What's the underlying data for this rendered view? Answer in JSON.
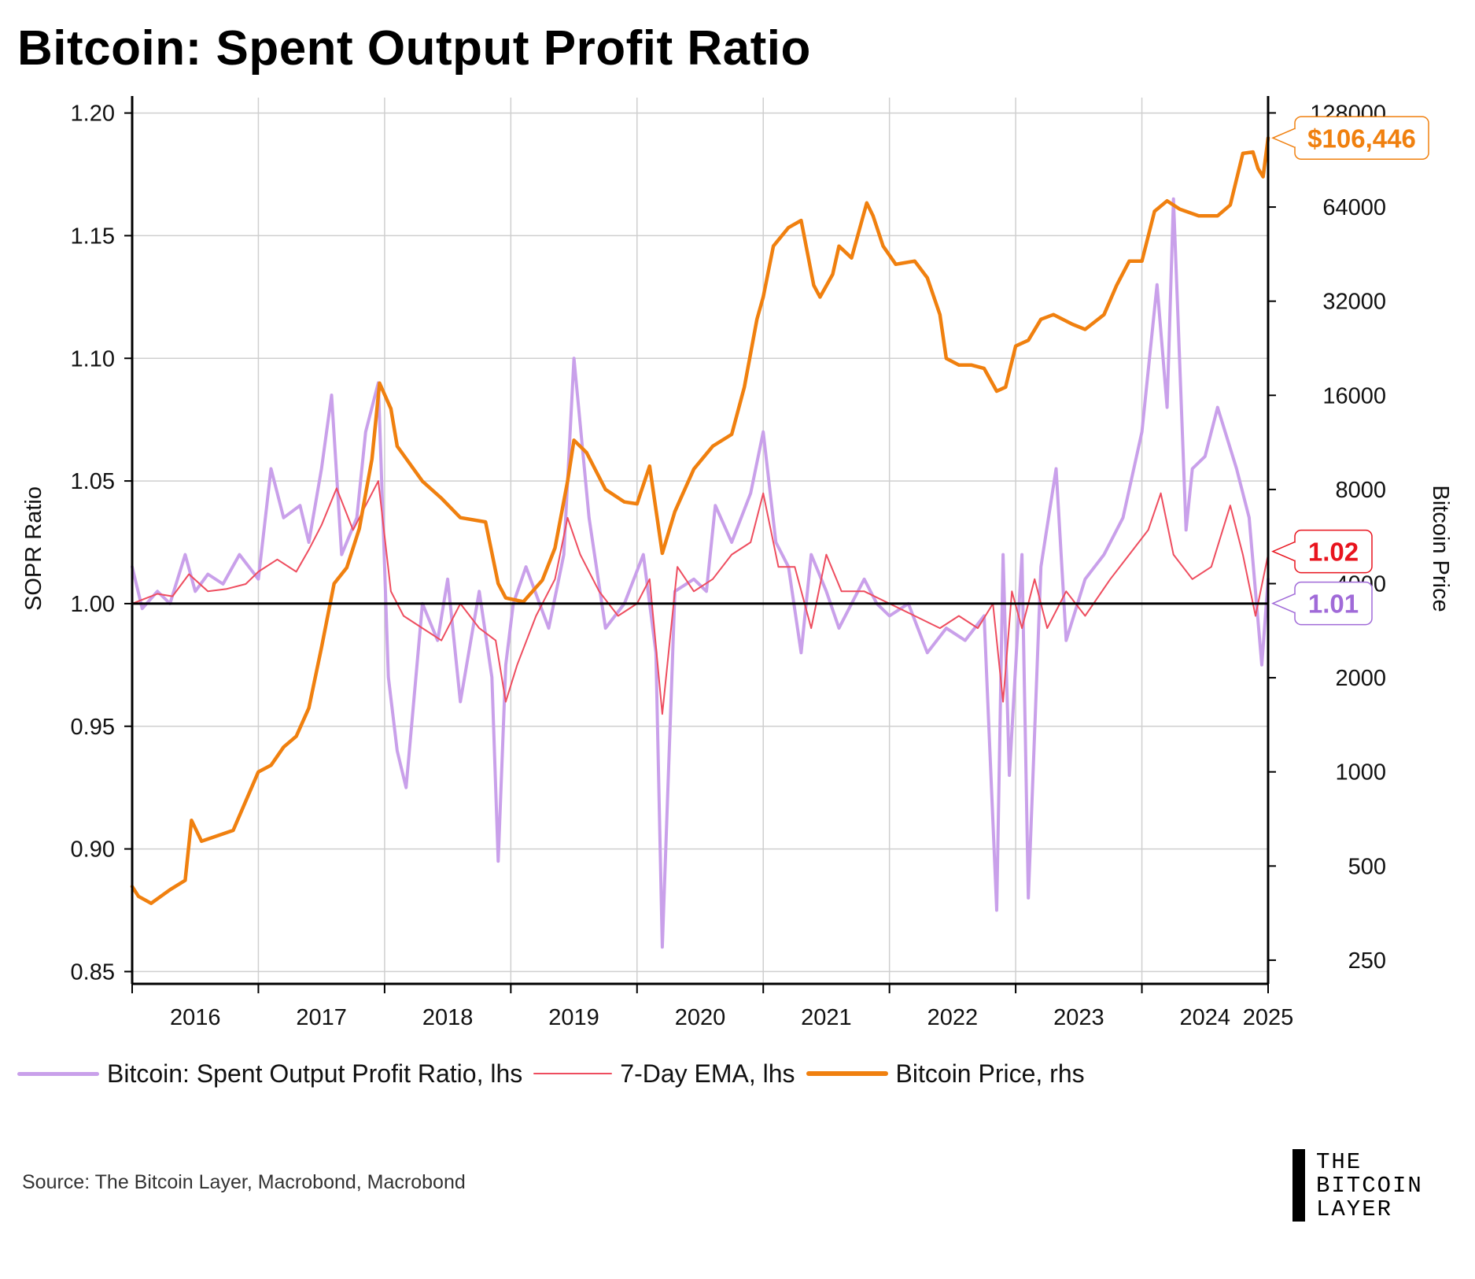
{
  "title": "Bitcoin: Spent Output Profit Ratio",
  "source": "Source: The Bitcoin Layer, Macrobond, Macrobond",
  "logo": [
    "THE",
    "BITCOIN",
    "LAYER"
  ],
  "colors": {
    "sopr": "#c9a0ea",
    "ema": "#ee4d5f",
    "price": "#f0800f",
    "grid": "#cfcfcf",
    "axis": "#000000"
  },
  "chart_data": {
    "type": "line",
    "title": "Bitcoin: Spent Output Profit Ratio",
    "ylabel_left": "SOPR Ratio",
    "ylabel_right": "Bitcoin Price",
    "right_axis_scale": "log2",
    "ylim_left": [
      0.845,
      1.205
    ],
    "ylim_right": [
      210,
      140000
    ],
    "xlim": [
      2016.0,
      2025.0
    ],
    "left_ticks": [
      "0.85",
      "0.90",
      "0.95",
      "1.00",
      "1.05",
      "1.10",
      "1.15",
      "1.20"
    ],
    "right_ticks": [
      "250",
      "500",
      "1000",
      "2000",
      "4000",
      "8000",
      "16000",
      "32000",
      "64000",
      "128000"
    ],
    "x_ticks": [
      "2016",
      "2017",
      "2018",
      "2019",
      "2020",
      "2021",
      "2022",
      "2023",
      "2024",
      "2025"
    ],
    "grid": true,
    "legend_position": "bottom",
    "reference_line": 1.0,
    "callouts": [
      {
        "text": "$106,446",
        "series": "Bitcoin Price, rhs",
        "value": 106446,
        "color": "#f0800f"
      },
      {
        "text": "1.02",
        "series": "7-Day EMA, lhs",
        "value": 1.02,
        "color": "#e8141e"
      },
      {
        "text": "1.01",
        "series": "Bitcoin: Spent Output Profit Ratio, lhs",
        "value": 1.01,
        "color": "#a06ad8"
      }
    ],
    "series": [
      {
        "name": "Bitcoin: Spent Output Profit Ratio, lhs",
        "axis": "left",
        "x": [
          2016.0,
          2016.08,
          2016.2,
          2016.3,
          2016.42,
          2016.5,
          2016.6,
          2016.72,
          2016.85,
          2017.0,
          2017.1,
          2017.2,
          2017.33,
          2017.4,
          2017.5,
          2017.58,
          2017.66,
          2017.78,
          2017.85,
          2017.95,
          2018.03,
          2018.1,
          2018.17,
          2018.3,
          2018.42,
          2018.5,
          2018.6,
          2018.75,
          2018.85,
          2018.9,
          2018.96,
          2019.02,
          2019.12,
          2019.3,
          2019.42,
          2019.5,
          2019.62,
          2019.75,
          2019.9,
          2020.05,
          2020.15,
          2020.2,
          2020.3,
          2020.45,
          2020.55,
          2020.62,
          2020.75,
          2020.9,
          2021.0,
          2021.1,
          2021.2,
          2021.3,
          2021.38,
          2021.5,
          2021.6,
          2021.8,
          2021.9,
          2022.0,
          2022.15,
          2022.3,
          2022.45,
          2022.6,
          2022.75,
          2022.85,
          2022.9,
          2022.95,
          2023.05,
          2023.1,
          2023.2,
          2023.32,
          2023.4,
          2023.55,
          2023.7,
          2023.85,
          2024.0,
          2024.12,
          2024.2,
          2024.25,
          2024.35,
          2024.4,
          2024.5,
          2024.6,
          2024.75,
          2024.85,
          2024.95,
          2025.0
        ],
        "values": [
          1.015,
          0.998,
          1.005,
          1.0,
          1.02,
          1.005,
          1.012,
          1.008,
          1.02,
          1.01,
          1.055,
          1.035,
          1.04,
          1.025,
          1.055,
          1.085,
          1.02,
          1.035,
          1.07,
          1.09,
          0.97,
          0.94,
          0.925,
          1.0,
          0.985,
          1.01,
          0.96,
          1.005,
          0.97,
          0.895,
          0.975,
          1.0,
          1.015,
          0.99,
          1.02,
          1.1,
          1.035,
          0.99,
          1.0,
          1.02,
          0.98,
          0.86,
          1.005,
          1.01,
          1.005,
          1.04,
          1.025,
          1.045,
          1.07,
          1.025,
          1.015,
          0.98,
          1.02,
          1.005,
          0.99,
          1.01,
          1.0,
          0.995,
          1.0,
          0.98,
          0.99,
          0.985,
          0.995,
          0.875,
          1.02,
          0.93,
          1.02,
          0.88,
          1.015,
          1.055,
          0.985,
          1.01,
          1.02,
          1.035,
          1.07,
          1.13,
          1.08,
          1.165,
          1.03,
          1.055,
          1.06,
          1.08,
          1.055,
          1.035,
          0.975,
          1.01
        ]
      },
      {
        "name": "7-Day EMA, lhs",
        "axis": "left",
        "x": [
          2016.0,
          2016.1,
          2016.2,
          2016.32,
          2016.45,
          2016.6,
          2016.75,
          2016.9,
          2017.0,
          2017.15,
          2017.3,
          2017.4,
          2017.5,
          2017.62,
          2017.75,
          2017.85,
          2017.95,
          2018.05,
          2018.15,
          2018.3,
          2018.45,
          2018.6,
          2018.75,
          2018.88,
          2018.96,
          2019.05,
          2019.2,
          2019.35,
          2019.45,
          2019.55,
          2019.7,
          2019.85,
          2020.0,
          2020.1,
          2020.2,
          2020.32,
          2020.45,
          2020.6,
          2020.75,
          2020.9,
          2021.0,
          2021.12,
          2021.25,
          2021.38,
          2021.5,
          2021.62,
          2021.8,
          2022.0,
          2022.2,
          2022.4,
          2022.55,
          2022.7,
          2022.82,
          2022.9,
          2022.97,
          2023.05,
          2023.15,
          2023.25,
          2023.4,
          2023.55,
          2023.75,
          2023.9,
          2024.05,
          2024.15,
          2024.25,
          2024.4,
          2024.55,
          2024.7,
          2024.8,
          2024.9,
          2025.0
        ],
        "values": [
          1.0,
          1.002,
          1.004,
          1.003,
          1.012,
          1.005,
          1.006,
          1.008,
          1.013,
          1.018,
          1.013,
          1.022,
          1.032,
          1.047,
          1.03,
          1.04,
          1.05,
          1.005,
          0.995,
          0.99,
          0.985,
          1.0,
          0.99,
          0.985,
          0.96,
          0.975,
          0.995,
          1.01,
          1.035,
          1.02,
          1.005,
          0.995,
          1.0,
          1.01,
          0.955,
          1.015,
          1.005,
          1.01,
          1.02,
          1.025,
          1.045,
          1.015,
          1.015,
          0.99,
          1.02,
          1.005,
          1.005,
          1.0,
          0.995,
          0.99,
          0.995,
          0.99,
          1.0,
          0.96,
          1.005,
          0.99,
          1.01,
          0.99,
          1.005,
          0.995,
          1.01,
          1.02,
          1.03,
          1.045,
          1.02,
          1.01,
          1.015,
          1.04,
          1.02,
          0.995,
          1.02
        ]
      },
      {
        "name": "Bitcoin Price, rhs",
        "axis": "right",
        "x": [
          2016.0,
          2016.05,
          2016.15,
          2016.3,
          2016.42,
          2016.47,
          2016.55,
          2016.65,
          2016.8,
          2017.0,
          2017.1,
          2017.2,
          2017.3,
          2017.4,
          2017.5,
          2017.6,
          2017.7,
          2017.8,
          2017.9,
          2017.96,
          2018.05,
          2018.1,
          2018.3,
          2018.45,
          2018.6,
          2018.8,
          2018.9,
          2018.96,
          2019.1,
          2019.25,
          2019.35,
          2019.45,
          2019.5,
          2019.6,
          2019.75,
          2019.9,
          2020.0,
          2020.1,
          2020.2,
          2020.3,
          2020.45,
          2020.6,
          2020.75,
          2020.85,
          2020.95,
          2021.0,
          2021.08,
          2021.2,
          2021.3,
          2021.4,
          2021.45,
          2021.55,
          2021.6,
          2021.7,
          2021.82,
          2021.87,
          2021.95,
          2022.05,
          2022.2,
          2022.3,
          2022.4,
          2022.45,
          2022.55,
          2022.65,
          2022.75,
          2022.85,
          2022.92,
          2023.0,
          2023.1,
          2023.2,
          2023.3,
          2023.45,
          2023.55,
          2023.7,
          2023.8,
          2023.9,
          2024.0,
          2024.1,
          2024.2,
          2024.3,
          2024.45,
          2024.6,
          2024.7,
          2024.8,
          2024.88,
          2024.92,
          2024.96,
          2025.0
        ],
        "values": [
          430,
          400,
          380,
          420,
          450,
          700,
          600,
          620,
          650,
          1000,
          1050,
          1200,
          1300,
          1600,
          2500,
          4000,
          4500,
          6000,
          10000,
          17500,
          14500,
          11000,
          8500,
          7500,
          6500,
          6300,
          4000,
          3600,
          3500,
          4100,
          5200,
          8500,
          11500,
          10500,
          8000,
          7300,
          7200,
          9500,
          5000,
          6800,
          9300,
          11000,
          12000,
          17000,
          28000,
          33000,
          48000,
          55000,
          58000,
          36000,
          33000,
          39000,
          48000,
          44000,
          66000,
          60000,
          48000,
          42000,
          43000,
          38000,
          29000,
          21000,
          20000,
          20000,
          19500,
          16500,
          17000,
          23000,
          24000,
          28000,
          29000,
          27000,
          26000,
          29000,
          36000,
          43000,
          43000,
          62000,
          67000,
          63000,
          60000,
          60000,
          65000,
          95000,
          96000,
          85000,
          80000,
          106446
        ]
      }
    ]
  }
}
